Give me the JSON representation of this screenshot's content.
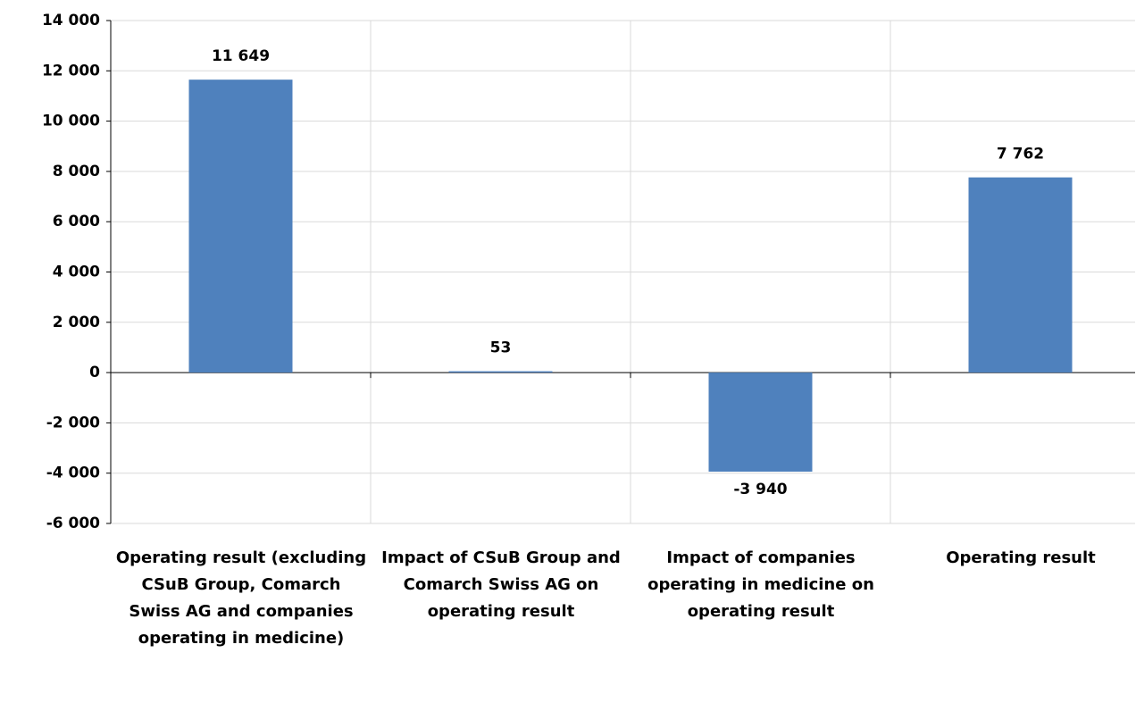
{
  "chart_data": {
    "type": "bar",
    "categories": [
      "Operating result (excluding CSuB Group, Comarch Swiss AG and companies operating in medicine)",
      "Impact of CSuB Group and Comarch Swiss AG on operating result",
      "Impact of companies operating in medicine on operating result",
      "Operating result"
    ],
    "values": [
      11649,
      53,
      -3940,
      7762
    ],
    "value_labels": [
      "11 649",
      "53",
      "-3 940",
      "7 762"
    ],
    "color": "#4f81bd",
    "ylim": [
      -6000,
      14000
    ],
    "yticks": [
      {
        "value": -6000,
        "label": "-6 000"
      },
      {
        "value": -4000,
        "label": "-4 000"
      },
      {
        "value": -2000,
        "label": "-2 000"
      },
      0,
      {
        "value": 2000,
        "label": "2 000"
      },
      {
        "value": 4000,
        "label": "4 000"
      },
      {
        "value": 6000,
        "label": "6 000"
      },
      {
        "value": 8000,
        "label": "8 000"
      },
      {
        "value": 10000,
        "label": "10 000"
      },
      {
        "value": 12000,
        "label": "12 000"
      },
      {
        "value": 14000,
        "label": "14 000"
      }
    ],
    "grid": true
  }
}
